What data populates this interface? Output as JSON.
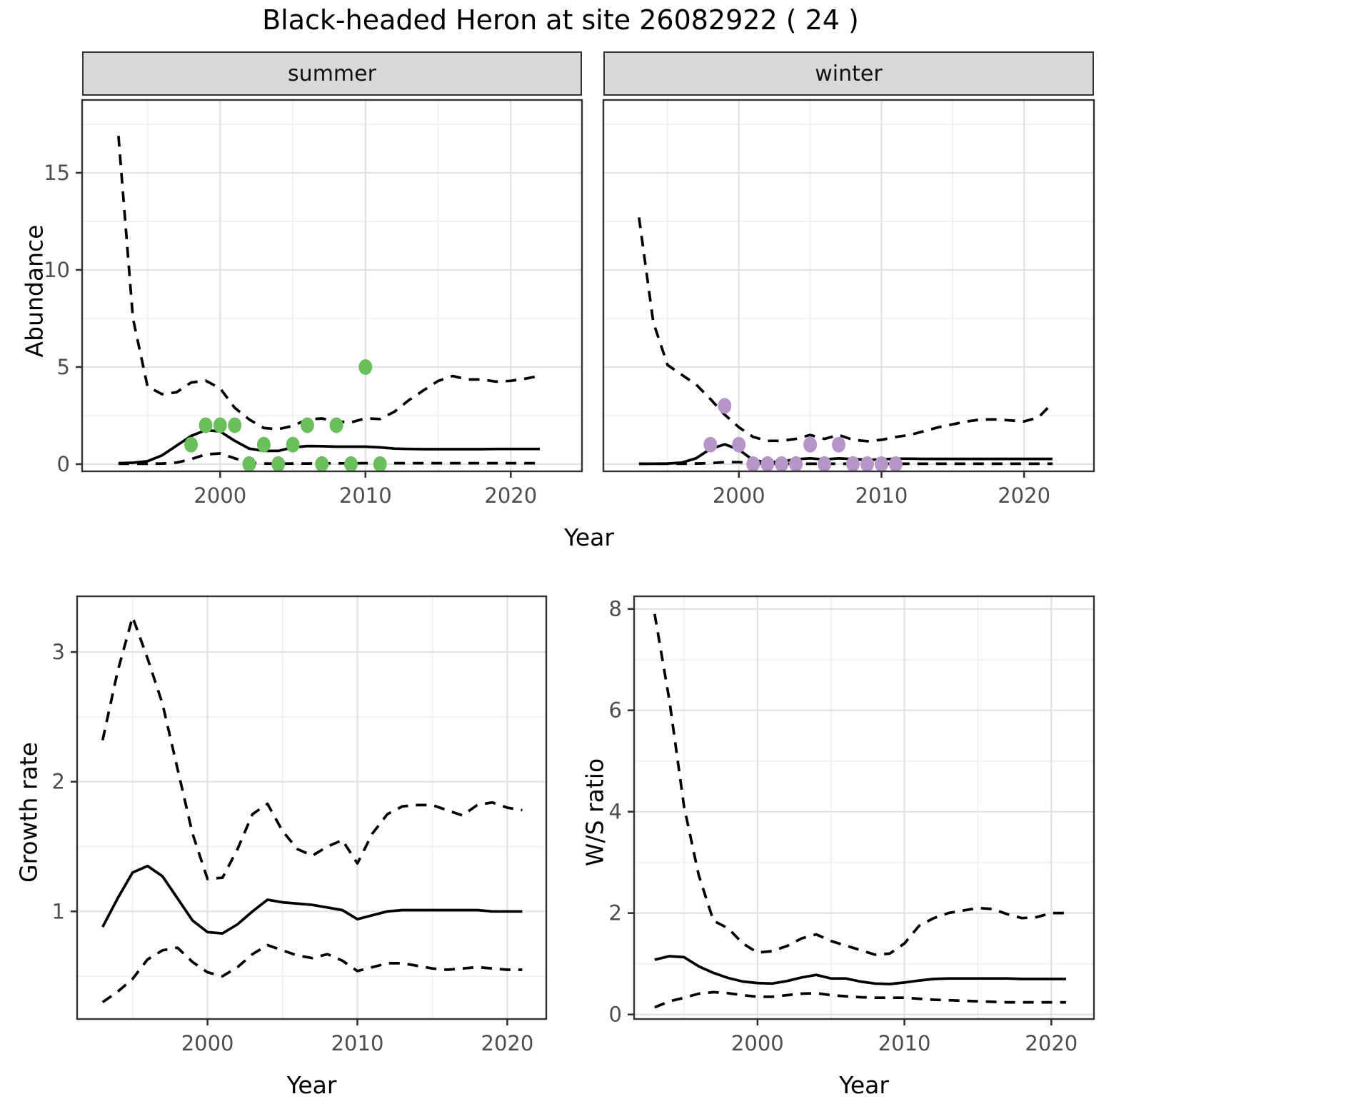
{
  "title": "Black-headed Heron at site 26082922 ( 24 )",
  "colors": {
    "summer_points": "#6abf5a",
    "winter_points": "#b794c9",
    "line": "#000000",
    "strip_bg": "#d9d9d9",
    "panel_bg": "#ffffff",
    "grid_major": "#e2e2e2",
    "grid_minor": "#f0f0f0",
    "panel_border": "#333333",
    "tick_text": "#4d4d4d"
  },
  "chart_data": [
    {
      "id": "abundance-summer",
      "type": "line",
      "facet": "summer",
      "xlabel": "Year",
      "ylabel": "Abundance",
      "x_domain": [
        1990.5,
        2024.9
      ],
      "y_domain": [
        -0.37,
        18.75
      ],
      "x_ticks": [
        2000,
        2010,
        2020
      ],
      "x_minor_ticks": [
        1995,
        2005,
        2015
      ],
      "y_ticks": [
        0,
        5,
        10,
        15
      ],
      "y_minor_ticks": [
        2.5,
        7.5,
        12.5,
        17.5
      ],
      "grid": true,
      "legend": "none",
      "years": [
        1993,
        1994,
        1995,
        1996,
        1997,
        1998,
        1999,
        2000,
        2001,
        2002,
        2003,
        2004,
        2005,
        2006,
        2007,
        2008,
        2009,
        2010,
        2011,
        2012,
        2013,
        2014,
        2015,
        2016,
        2017,
        2018,
        2019,
        2020,
        2021,
        2022
      ],
      "series": [
        {
          "name": "lower_95ci",
          "style": "dashed",
          "values": [
            0.02,
            0.02,
            0.02,
            0.03,
            0.08,
            0.25,
            0.5,
            0.55,
            0.3,
            0.07,
            0.03,
            0.02,
            0.03,
            0.03,
            0.04,
            0.04,
            0.04,
            0.05,
            0.05,
            0.05,
            0.05,
            0.05,
            0.05,
            0.05,
            0.05,
            0.05,
            0.05,
            0.05,
            0.05,
            0.05
          ]
        },
        {
          "name": "upper_95ci",
          "style": "dashed",
          "values": [
            16.9,
            7.5,
            4.0,
            3.6,
            3.7,
            4.2,
            4.3,
            3.9,
            2.9,
            2.3,
            1.86,
            1.8,
            1.97,
            2.3,
            2.35,
            2.2,
            2.15,
            2.36,
            2.32,
            2.7,
            3.3,
            3.8,
            4.28,
            4.54,
            4.36,
            4.36,
            4.25,
            4.29,
            4.4,
            4.55
          ]
        },
        {
          "name": "mean",
          "style": "solid",
          "values": [
            0.05,
            0.07,
            0.15,
            0.45,
            0.95,
            1.45,
            1.75,
            1.68,
            1.2,
            0.8,
            0.68,
            0.68,
            0.86,
            0.93,
            0.92,
            0.9,
            0.9,
            0.9,
            0.86,
            0.8,
            0.78,
            0.77,
            0.77,
            0.77,
            0.77,
            0.77,
            0.78,
            0.78,
            0.78,
            0.78
          ]
        }
      ],
      "points": {
        "name": "observed-counts-summer",
        "color_key": "summer_points",
        "years": [
          1998,
          1999,
          2000,
          2001,
          2002,
          2003,
          2004,
          2005,
          2006,
          2007,
          2008,
          2009,
          2010,
          2011
        ],
        "values": [
          1,
          2,
          2,
          2,
          0,
          1,
          0,
          1,
          2,
          0,
          2,
          0,
          5,
          0
        ]
      }
    },
    {
      "id": "abundance-winter",
      "type": "line",
      "facet": "winter",
      "xlabel": "Year",
      "ylabel": "Abundance",
      "x_domain": [
        1990.5,
        2024.9
      ],
      "y_domain": [
        -0.37,
        18.75
      ],
      "x_ticks": [
        2000,
        2010,
        2020
      ],
      "x_minor_ticks": [
        1995,
        2005,
        2015
      ],
      "y_ticks": [
        0,
        5,
        10,
        15
      ],
      "y_minor_ticks": [
        2.5,
        7.5,
        12.5,
        17.5
      ],
      "grid": true,
      "legend": "none",
      "years": [
        1993,
        1994,
        1995,
        1996,
        1997,
        1998,
        1999,
        2000,
        2001,
        2002,
        2003,
        2004,
        2005,
        2006,
        2007,
        2008,
        2009,
        2010,
        2011,
        2012,
        2013,
        2014,
        2015,
        2016,
        2017,
        2018,
        2019,
        2020,
        2021,
        2022
      ],
      "series": [
        {
          "name": "lower_95ci",
          "style": "dashed",
          "values": [
            0.02,
            0.02,
            0.02,
            0.02,
            0.03,
            0.05,
            0.1,
            0.1,
            0.05,
            0.02,
            0.02,
            0.02,
            0.02,
            0.02,
            0.02,
            0.02,
            0.02,
            0.02,
            0.02,
            0.02,
            0.02,
            0.02,
            0.02,
            0.02,
            0.02,
            0.02,
            0.02,
            0.02,
            0.02,
            0.02
          ]
        },
        {
          "name": "upper_95ci",
          "style": "dashed",
          "values": [
            12.7,
            7.3,
            5.1,
            4.6,
            4.1,
            3.35,
            2.55,
            1.9,
            1.4,
            1.2,
            1.2,
            1.3,
            1.5,
            1.3,
            1.5,
            1.25,
            1.18,
            1.25,
            1.4,
            1.5,
            1.7,
            1.9,
            2.05,
            2.2,
            2.3,
            2.3,
            2.25,
            2.2,
            2.4,
            3.15
          ]
        },
        {
          "name": "mean",
          "style": "solid",
          "values": [
            0.02,
            0.02,
            0.03,
            0.08,
            0.3,
            0.78,
            1.02,
            0.75,
            0.2,
            0.1,
            0.13,
            0.25,
            0.3,
            0.24,
            0.3,
            0.26,
            0.22,
            0.24,
            0.28,
            0.28,
            0.27,
            0.27,
            0.27,
            0.27,
            0.27,
            0.27,
            0.27,
            0.27,
            0.27,
            0.27
          ]
        }
      ],
      "points": {
        "name": "observed-counts-winter",
        "color_key": "winter_points",
        "years": [
          1998,
          1999,
          2000,
          2001,
          2002,
          2003,
          2004,
          2005,
          2006,
          2007,
          2008,
          2009,
          2010,
          2011
        ],
        "values": [
          1,
          3,
          1,
          0,
          0,
          0,
          0,
          1,
          0,
          1,
          0,
          0,
          0,
          0
        ]
      }
    },
    {
      "id": "growth-rate",
      "type": "line",
      "facet": "",
      "xlabel": "Year",
      "ylabel": "Growth rate",
      "x_domain": [
        1991.3,
        2022.6
      ],
      "y_domain": [
        0.17,
        3.43
      ],
      "x_ticks": [
        2000,
        2010,
        2020
      ],
      "x_minor_ticks": [
        1995,
        2005,
        2015
      ],
      "y_ticks": [
        1,
        2,
        3
      ],
      "y_minor_ticks": [
        0.5,
        1.5,
        2.5
      ],
      "grid": true,
      "legend": "none",
      "years": [
        1993,
        1994,
        1995,
        1996,
        1997,
        1998,
        1999,
        2000,
        2001,
        2002,
        2003,
        2004,
        2005,
        2006,
        2007,
        2008,
        2009,
        2010,
        2011,
        2012,
        2013,
        2014,
        2015,
        2016,
        2017,
        2018,
        2019,
        2020,
        2021
      ],
      "series": [
        {
          "name": "lower_95ci",
          "style": "dashed",
          "values": [
            0.3,
            0.38,
            0.48,
            0.63,
            0.7,
            0.72,
            0.61,
            0.53,
            0.5,
            0.57,
            0.67,
            0.74,
            0.7,
            0.66,
            0.64,
            0.67,
            0.62,
            0.54,
            0.57,
            0.6,
            0.6,
            0.58,
            0.56,
            0.55,
            0.56,
            0.57,
            0.56,
            0.55,
            0.55
          ]
        },
        {
          "name": "upper_95ci",
          "style": "dashed",
          "values": [
            2.32,
            2.85,
            3.27,
            2.95,
            2.6,
            2.1,
            1.6,
            1.25,
            1.26,
            1.48,
            1.75,
            1.83,
            1.62,
            1.48,
            1.43,
            1.5,
            1.55,
            1.37,
            1.6,
            1.75,
            1.81,
            1.82,
            1.82,
            1.78,
            1.74,
            1.82,
            1.84,
            1.8,
            1.78
          ]
        },
        {
          "name": "mean",
          "style": "solid",
          "values": [
            0.88,
            1.1,
            1.3,
            1.35,
            1.27,
            1.1,
            0.93,
            0.84,
            0.83,
            0.9,
            1.0,
            1.09,
            1.07,
            1.06,
            1.05,
            1.03,
            1.01,
            0.94,
            0.97,
            1.0,
            1.01,
            1.01,
            1.01,
            1.01,
            1.01,
            1.01,
            1.0,
            1.0,
            1.0
          ]
        }
      ],
      "points": null
    },
    {
      "id": "ws-ratio",
      "type": "line",
      "facet": "",
      "xlabel": "Year",
      "ylabel": "W/S ratio",
      "x_domain": [
        1991.6,
        2022.9
      ],
      "y_domain": [
        -0.09,
        8.25
      ],
      "x_ticks": [
        2000,
        2010,
        2020
      ],
      "x_minor_ticks": [
        1995,
        2005,
        2015
      ],
      "y_ticks": [
        0,
        2,
        4,
        6,
        8
      ],
      "y_minor_ticks": [
        1,
        3,
        5,
        7
      ],
      "grid": true,
      "legend": "none",
      "years": [
        1993,
        1994,
        1995,
        1996,
        1997,
        1998,
        1999,
        2000,
        2001,
        2002,
        2003,
        2004,
        2005,
        2006,
        2007,
        2008,
        2009,
        2010,
        2011,
        2012,
        2013,
        2014,
        2015,
        2016,
        2017,
        2018,
        2019,
        2020,
        2021
      ],
      "series": [
        {
          "name": "lower_95ci",
          "style": "dashed",
          "values": [
            0.14,
            0.26,
            0.33,
            0.41,
            0.44,
            0.42,
            0.38,
            0.35,
            0.35,
            0.38,
            0.41,
            0.42,
            0.38,
            0.36,
            0.34,
            0.33,
            0.33,
            0.33,
            0.31,
            0.29,
            0.28,
            0.27,
            0.26,
            0.25,
            0.24,
            0.24,
            0.24,
            0.24,
            0.24
          ]
        },
        {
          "name": "upper_95ci",
          "style": "dashed",
          "values": [
            7.9,
            6.2,
            4.1,
            2.75,
            1.85,
            1.7,
            1.4,
            1.22,
            1.25,
            1.35,
            1.5,
            1.58,
            1.45,
            1.36,
            1.27,
            1.18,
            1.2,
            1.4,
            1.75,
            1.9,
            2.0,
            2.05,
            2.1,
            2.08,
            1.98,
            1.9,
            1.92,
            2.0,
            2.0
          ]
        },
        {
          "name": "mean",
          "style": "solid",
          "values": [
            1.08,
            1.15,
            1.13,
            0.95,
            0.82,
            0.72,
            0.65,
            0.62,
            0.61,
            0.66,
            0.73,
            0.78,
            0.71,
            0.71,
            0.65,
            0.61,
            0.6,
            0.63,
            0.67,
            0.7,
            0.71,
            0.71,
            0.71,
            0.71,
            0.71,
            0.7,
            0.7,
            0.7,
            0.7
          ]
        }
      ],
      "points": null
    }
  ]
}
